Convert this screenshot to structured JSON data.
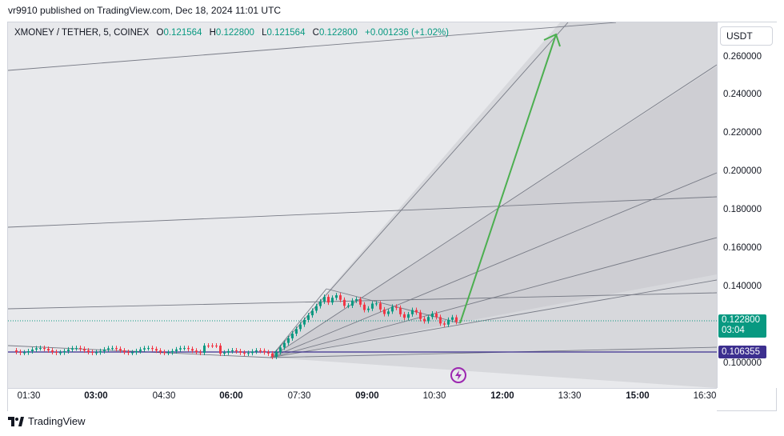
{
  "publish_info": "vr9910 published on TradingView.com, Dec 18, 2024 11:01 UTC",
  "symbol": {
    "name": "XMONEY / TETHER, 5, COINEX",
    "open_key": "O",
    "open": "0.121564",
    "high_key": "H",
    "high": "0.122800",
    "low_key": "L",
    "low": "0.121564",
    "close_key": "C",
    "close": "0.122800",
    "change": "+0.001236 (+1.02%)"
  },
  "currency_button": "USDT",
  "price_axis": {
    "ticks": [
      "0.260000",
      "0.240000",
      "0.220000",
      "0.200000",
      "0.180000",
      "0.160000",
      "0.140000",
      "0.100000"
    ]
  },
  "time_axis": {
    "ticks": [
      "01:30",
      "03:00",
      "04:30",
      "06:00",
      "07:30",
      "09:00",
      "10:30",
      "12:00",
      "13:30",
      "15:00",
      "16:30"
    ]
  },
  "last_price": {
    "value": "0.122800",
    "countdown": "03:04"
  },
  "horizontal_line_price": "0.106355",
  "footer": {
    "logo_text": "TradingView"
  },
  "colors": {
    "up": "#089981",
    "down": "#f23645",
    "arrow": "#4caf50",
    "horizontal_line": "#3c2f8f",
    "flash": "#9c27b0"
  },
  "icons": {
    "flash": "lightning-icon",
    "logo": "tradingview-logo-icon"
  }
}
